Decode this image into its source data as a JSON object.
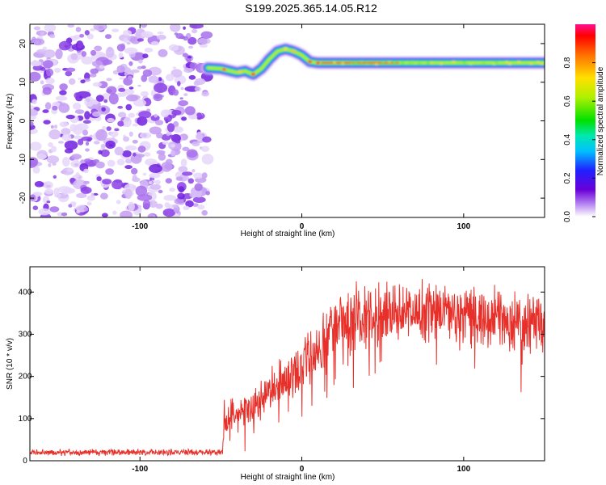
{
  "title": "S199.2025.365.14.05.R12",
  "chart_data": [
    {
      "type": "heatmap",
      "xlabel": "Height of straight line (km)",
      "ylabel": "Frequency (Hz)",
      "xlim": [
        -168,
        150
      ],
      "ylim": [
        -25,
        25
      ],
      "xticks": [
        -100,
        0,
        100
      ],
      "xtick_labels": [
        "-100",
        "0",
        "100"
      ],
      "yticks": [
        -20,
        -10,
        0,
        10,
        20
      ],
      "ytick_labels": [
        "-20",
        "-10",
        "0",
        "10",
        "20"
      ],
      "noise_region_x": [
        -168,
        -58
      ],
      "ridge": {
        "x": [
          -58,
          -50,
          -45,
          -40,
          -35,
          -30,
          -25,
          -20,
          -15,
          -10,
          -5,
          0,
          5,
          10,
          20,
          40,
          60,
          80,
          100,
          120,
          140,
          150
        ],
        "freq": [
          13.7,
          13.5,
          13.0,
          12.5,
          12.9,
          12.0,
          13.5,
          16.0,
          18.0,
          18.6,
          18.0,
          17.0,
          15.3,
          15.0,
          15.0,
          15.0,
          15.0,
          15.0,
          15.0,
          15.0,
          15.0,
          15.0
        ]
      },
      "colorbar": {
        "label": "Normalized spectral amplitude",
        "range": [
          0,
          1
        ],
        "ticks": [
          0.0,
          0.2,
          0.4,
          0.6,
          0.8
        ],
        "tick_labels": [
          "0.0",
          "0.2",
          "0.4",
          "0.6",
          "0.8"
        ]
      }
    },
    {
      "type": "line",
      "xlabel": "Height of straight line (km)",
      "ylabel": "SNR (10 * v/v)",
      "xlim": [
        -168,
        150
      ],
      "ylim": [
        0,
        460
      ],
      "xticks": [
        -100,
        0,
        100
      ],
      "xtick_labels": [
        "-100",
        "0",
        "100"
      ],
      "yticks": [
        0,
        100,
        200,
        300,
        400
      ],
      "ytick_labels": [
        "0",
        "100",
        "200",
        "300",
        "400"
      ],
      "series": [
        {
          "name": "SNR",
          "color": "#e8302a",
          "trend_x": [
            -168,
            -49,
            -48,
            -30,
            -20,
            -10,
            0,
            10,
            20,
            30,
            50,
            70,
            90,
            110,
            130,
            150
          ],
          "trend_y": [
            20,
            20,
            100,
            130,
            160,
            190,
            220,
            260,
            320,
            340,
            350,
            355,
            350,
            345,
            335,
            320
          ]
        }
      ]
    }
  ]
}
